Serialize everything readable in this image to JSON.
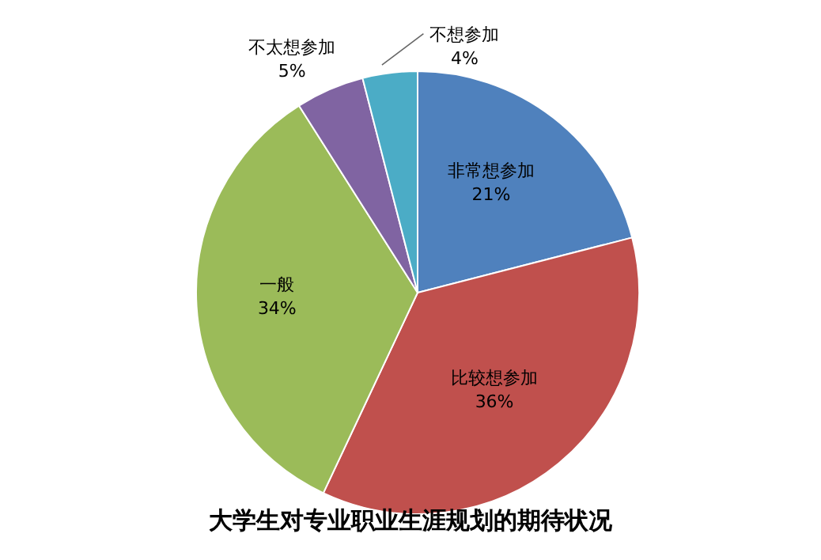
{
  "chart_data": {
    "type": "pie",
    "title": "大学生对专业职业生涯规划的期待状况",
    "categories": [
      "非常想参加",
      "比较想参加",
      "一般",
      "不太想参加",
      "不想参加"
    ],
    "values": [
      21,
      36,
      34,
      5,
      4
    ],
    "value_labels": [
      "21%",
      "36%",
      "34%",
      "5%",
      "4%"
    ],
    "colors": [
      "#4f81bd",
      "#c0504d",
      "#9bbb59",
      "#8064a2",
      "#4bacc6"
    ],
    "legend": false
  }
}
